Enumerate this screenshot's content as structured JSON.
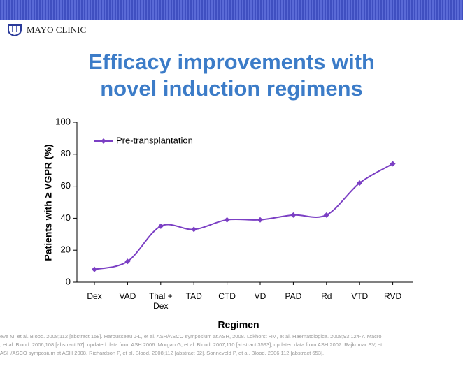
{
  "header": {
    "logo": "MAYO CLINIC"
  },
  "chart_data": {
    "type": "line",
    "title": "Efficacy improvements with novel induction regimens",
    "x_label": "Regimen",
    "y_label": "Patients with ≥ VGPR (%)",
    "categories": [
      "Dex",
      "VAD",
      "Thal + Dex",
      "TAD",
      "CTD",
      "VD",
      "PAD",
      "Rd",
      "VTD",
      "RVD"
    ],
    "series": [
      {
        "name": "Pre-transplantation",
        "color": "#7b3fc4",
        "values": [
          8,
          13,
          35,
          33,
          39,
          39,
          42,
          42,
          62,
          74
        ]
      }
    ],
    "ylim": [
      0,
      100
    ],
    "yticks": [
      0,
      20,
      40,
      60,
      80,
      100
    ],
    "grid": false,
    "legend": "upper left"
  },
  "footer": {
    "lines": [
      "eve M, et al. Blood. 2008;112 [abstract 158]. Harousseau J-L, et al. ASH/ASCO symposium at ASH, 2008. Lokhorst HM, et al. Haematologica. 2008;93:124-7. Macro",
      ", et al. Blood. 2006;108 [abstract 57]; updated data from ASH 2006. Morgan G, et al. Blood. 2007;110 [abstract 3593]; updated data from ASH 2007. Rajkumar SV, et",
      "ASH/ASCO symposium at ASH 2008. Richardson P, et al. Blood. 2008;112 [abstract 92]. Sonneveld P, et al. Blood. 2006;112 [abstract 653]."
    ]
  }
}
